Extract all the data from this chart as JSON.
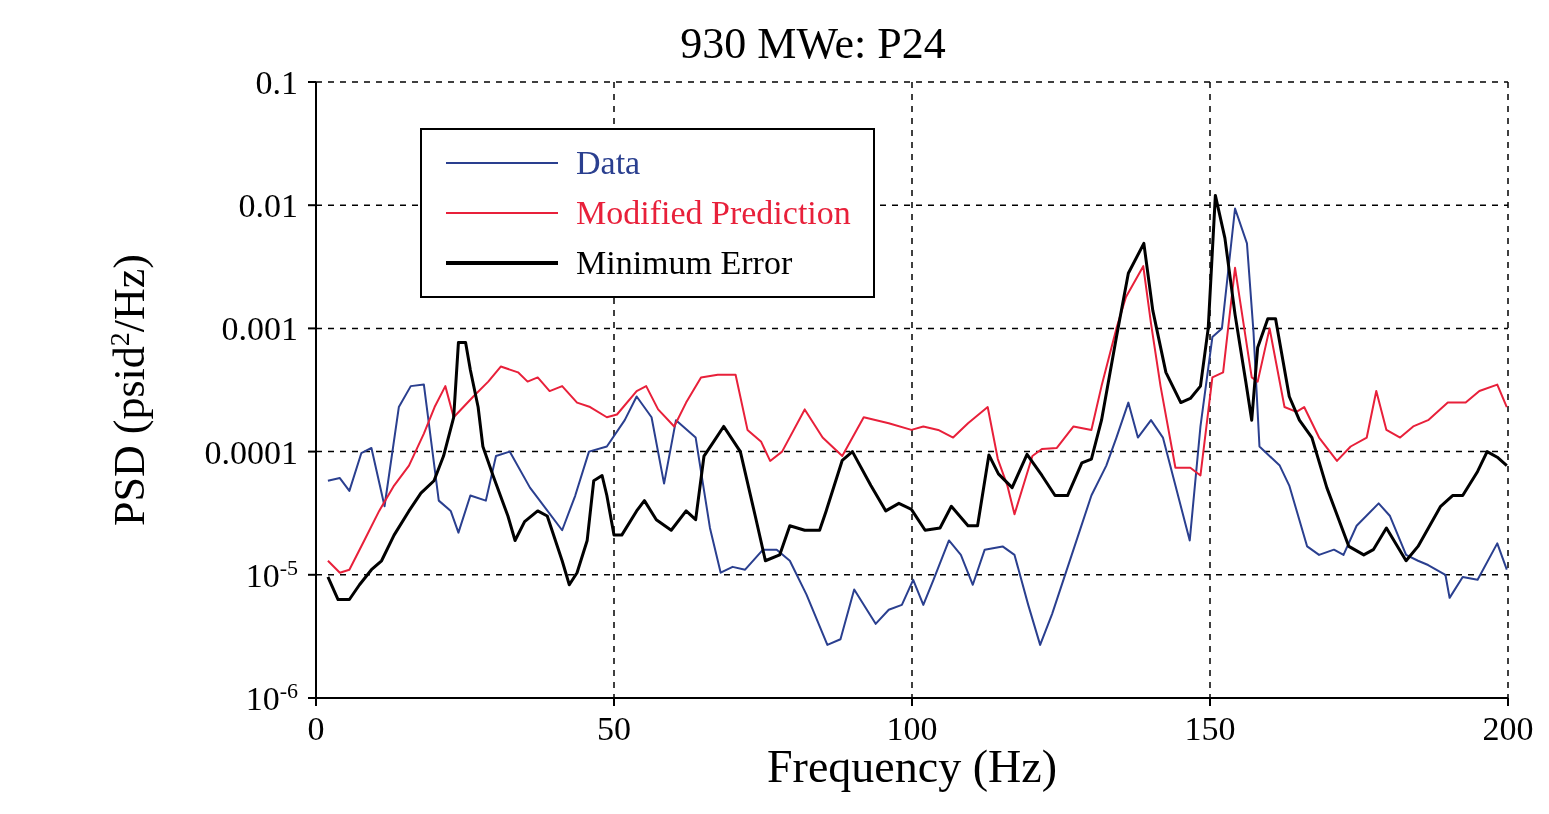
{
  "chart_data": {
    "type": "line",
    "title": "930 MWe: P24",
    "xlabel": "Frequency (Hz)",
    "ylabel": "PSD (psid$^{2}$/Hz)",
    "xlim": [
      0,
      200
    ],
    "xticks": [
      0,
      50,
      100,
      150,
      200
    ],
    "ylim": [
      1e-06,
      0.1
    ],
    "yticks": [
      {
        "value": 1e-06,
        "label": "10$^{-6}$"
      },
      {
        "value": 1e-05,
        "label": "10$^{-5}$"
      },
      0.0001,
      0.001,
      0.01,
      0.1
    ],
    "log": "y",
    "grid": true,
    "legend": "top left",
    "marker": "none",
    "line_style": "solid",
    "series": [
      {
        "name": "Data",
        "color": "#2a3f8f",
        "x": [
          2.0,
          4.0,
          5.6,
          7.6,
          9.3,
          11.5,
          13.9,
          15.9,
          18.1,
          20.6,
          22.6,
          23.9,
          25.9,
          28.5,
          30.2,
          32.5,
          35.9,
          41.3,
          43.5,
          45.8,
          48.8,
          51.8,
          53.8,
          56.3,
          58.4,
          60.4,
          63.7,
          66.1,
          67.9,
          69.9,
          72.0,
          75.0,
          77.3,
          79.5,
          82.3,
          85.8,
          88.0,
          90.3,
          93.9,
          96.1,
          98.3,
          100.2,
          101.9,
          103.6,
          106.2,
          108.2,
          110.2,
          112.2,
          115.2,
          117.2,
          119.5,
          121.5,
          123.5,
          126.8,
          130.1,
          132.6,
          134.3,
          136.3,
          137.9,
          140.1,
          142.1,
          144.2,
          146.6,
          148.4,
          150.4,
          152.0,
          154.2,
          156.2,
          157.3,
          158.3,
          161.7,
          163.3,
          166.3,
          168.3,
          170.8,
          172.4,
          174.6,
          178.3,
          180.2,
          182.9,
          184.9,
          186.6,
          189.5,
          190.2,
          192.4,
          194.9,
          198.2,
          199.8
        ],
        "values": [
          5.8e-05,
          6.1e-05,
          4.8e-05,
          9.7e-05,
          0.000107,
          3.6e-05,
          0.00023,
          0.00034,
          0.00035,
          4e-05,
          3.3e-05,
          2.2e-05,
          4.4e-05,
          4e-05,
          9.2e-05,
          0.0001,
          5.1e-05,
          2.3e-05,
          4.4e-05,
          0.0001,
          0.00011,
          0.00018,
          0.00028,
          0.00019,
          5.5e-05,
          0.00018,
          0.00013,
          2.4e-05,
          1.04e-05,
          1.16e-05,
          1.1e-05,
          1.6e-05,
          1.6e-05,
          1.3e-05,
          6.9e-06,
          2.7e-06,
          3e-06,
          7.6e-06,
          4e-06,
          5.2e-06,
          5.7e-06,
          9.1e-06,
          5.7e-06,
          9.1e-06,
          1.9e-05,
          1.45e-05,
          8.3e-06,
          1.6e-05,
          1.7e-05,
          1.45e-05,
          5.7e-06,
          2.7e-06,
          4.8e-06,
          1.45e-05,
          4.4e-05,
          7.7e-05,
          0.00013,
          0.00025,
          0.00013,
          0.00018,
          0.00013,
          5.3e-05,
          1.9e-05,
          0.00016,
          0.00085,
          0.001,
          0.0094,
          0.0049,
          0.00093,
          0.00011,
          7.7e-05,
          5.3e-05,
          1.7e-05,
          1.45e-05,
          1.6e-05,
          1.45e-05,
          2.5e-05,
          3.8e-05,
          3e-05,
          1.45e-05,
          1.3e-05,
          1.2e-05,
          1e-05,
          6.5e-06,
          9.6e-06,
          9.1e-06,
          1.8e-05,
          1.1e-05
        ]
      },
      {
        "name": "Modified Prediction",
        "color": "#e8203a",
        "x": [
          2.0,
          4.0,
          5.6,
          8.1,
          10.6,
          13.1,
          15.6,
          18.1,
          19.9,
          21.7,
          23.1,
          26.4,
          28.9,
          31.0,
          33.9,
          35.5,
          37.2,
          39.2,
          41.3,
          43.8,
          46.0,
          48.8,
          50.5,
          53.8,
          55.4,
          57.4,
          60.1,
          62.1,
          64.6,
          67.4,
          70.4,
          72.4,
          74.7,
          76.2,
          78.2,
          82.0,
          85.0,
          88.3,
          91.9,
          96.1,
          99.9,
          101.9,
          104.4,
          106.9,
          109.4,
          112.7,
          114.4,
          116.0,
          117.2,
          120.2,
          121.8,
          124.3,
          127.1,
          130.1,
          131.8,
          134.3,
          135.9,
          138.8,
          140.1,
          141.7,
          144.2,
          146.7,
          148.4,
          150.4,
          152.2,
          154.2,
          157.0,
          158.0,
          160.0,
          162.5,
          164.5,
          165.8,
          168.3,
          171.3,
          173.6,
          176.3,
          177.9,
          179.6,
          181.9,
          184.1,
          186.6,
          189.9,
          192.9,
          195.2,
          198.2,
          199.8
        ],
        "values": [
          1.3e-05,
          1.04e-05,
          1.1e-05,
          1.9e-05,
          3.3e-05,
          5.3e-05,
          7.7e-05,
          0.00014,
          0.00023,
          0.00034,
          0.00019,
          0.00028,
          0.00037,
          0.00049,
          0.00044,
          0.00037,
          0.0004,
          0.00031,
          0.00034,
          0.00025,
          0.00023,
          0.00019,
          0.0002,
          0.00031,
          0.00034,
          0.00022,
          0.00016,
          0.00025,
          0.0004,
          0.00042,
          0.00042,
          0.00015,
          0.00012,
          8.4e-05,
          0.0001,
          0.00022,
          0.00013,
          9.2e-05,
          0.00019,
          0.00017,
          0.00015,
          0.00016,
          0.00015,
          0.00013,
          0.00017,
          0.00023,
          8.7e-05,
          5.3e-05,
          3.1e-05,
          9.2e-05,
          0.000105,
          0.000107,
          0.00016,
          0.00015,
          0.00034,
          0.001,
          0.0018,
          0.0032,
          0.0011,
          0.00034,
          7.4e-05,
          7.4e-05,
          6.4e-05,
          0.0004,
          0.00044,
          0.0031,
          0.0004,
          0.00037,
          0.001,
          0.00023,
          0.00021,
          0.00023,
          0.00013,
          8.4e-05,
          0.00011,
          0.00013,
          0.00031,
          0.00015,
          0.00013,
          0.00016,
          0.00018,
          0.00025,
          0.00025,
          0.00031,
          0.00035,
          0.00023
        ]
      },
      {
        "name": "Minimum Error",
        "color": "#000000",
        "x": [
          2.0,
          3.7,
          5.6,
          7.3,
          9.3,
          11.0,
          13.1,
          15.6,
          17.6,
          19.8,
          21.4,
          23.1,
          23.9,
          25.1,
          25.9,
          27.2,
          28.0,
          29.7,
          32.2,
          33.4,
          35.0,
          37.2,
          38.8,
          41.3,
          42.5,
          43.8,
          45.5,
          46.6,
          48.0,
          48.8,
          50.0,
          51.3,
          53.8,
          55.1,
          57.1,
          59.6,
          62.1,
          63.7,
          65.1,
          66.7,
          68.4,
          71.2,
          73.7,
          75.4,
          77.8,
          79.5,
          82.0,
          84.5,
          85.6,
          88.3,
          90.0,
          93.1,
          95.6,
          97.8,
          99.9,
          102.2,
          104.7,
          106.6,
          109.4,
          111.0,
          112.9,
          114.5,
          116.8,
          119.3,
          121.8,
          124.0,
          126.1,
          128.5,
          130.1,
          131.8,
          134.3,
          136.3,
          138.9,
          140.4,
          142.6,
          145.1,
          146.7,
          148.4,
          149.7,
          150.9,
          152.5,
          154.2,
          156.0,
          157.0,
          158.0,
          159.7,
          161.0,
          163.3,
          165.0,
          167.1,
          169.6,
          173.3,
          175.8,
          177.4,
          179.6,
          182.9,
          184.9,
          188.7,
          190.7,
          192.4,
          194.9,
          196.5,
          198.2,
          199.8
        ],
        "values": [
          9.6e-06,
          6.3e-06,
          6.3e-06,
          8.3e-06,
          1.1e-05,
          1.3e-05,
          2.1e-05,
          3.3e-05,
          4.6e-05,
          5.8e-05,
          9.2e-05,
          0.00019,
          0.00077,
          0.00077,
          0.00046,
          0.00023,
          0.00011,
          6.4e-05,
          3e-05,
          1.9e-05,
          2.7e-05,
          3.3e-05,
          3e-05,
          1.3e-05,
          8.3e-06,
          1.04e-05,
          1.9e-05,
          5.8e-05,
          6.4e-05,
          4.4e-05,
          2.1e-05,
          2.1e-05,
          3.3e-05,
          4e-05,
          2.8e-05,
          2.3e-05,
          3.3e-05,
          2.8e-05,
          9.2e-05,
          0.00012,
          0.00016,
          0.0001,
          3e-05,
          1.3e-05,
          1.45e-05,
          2.5e-05,
          2.3e-05,
          2.3e-05,
          3.3e-05,
          8.5e-05,
          0.0001,
          5.3e-05,
          3.3e-05,
          3.8e-05,
          3.4e-05,
          2.3e-05,
          2.4e-05,
          3.6e-05,
          2.5e-05,
          2.5e-05,
          9.4e-05,
          6.6e-05,
          5.1e-05,
          9.5e-05,
          6.4e-05,
          4.4e-05,
          4.4e-05,
          8.1e-05,
          8.7e-05,
          0.00018,
          0.00085,
          0.0028,
          0.0049,
          0.0014,
          0.00044,
          0.00025,
          0.00027,
          0.00034,
          0.001,
          0.012,
          0.0054,
          0.0013,
          0.00037,
          0.00018,
          0.0007,
          0.0012,
          0.0012,
          0.00028,
          0.00018,
          0.00013,
          5.1e-05,
          1.7e-05,
          1.45e-05,
          1.6e-05,
          2.4e-05,
          1.3e-05,
          1.7e-05,
          3.6e-05,
          4.4e-05,
          4.4e-05,
          6.9e-05,
          0.0001,
          9e-05,
          7.7e-05
        ]
      }
    ]
  }
}
